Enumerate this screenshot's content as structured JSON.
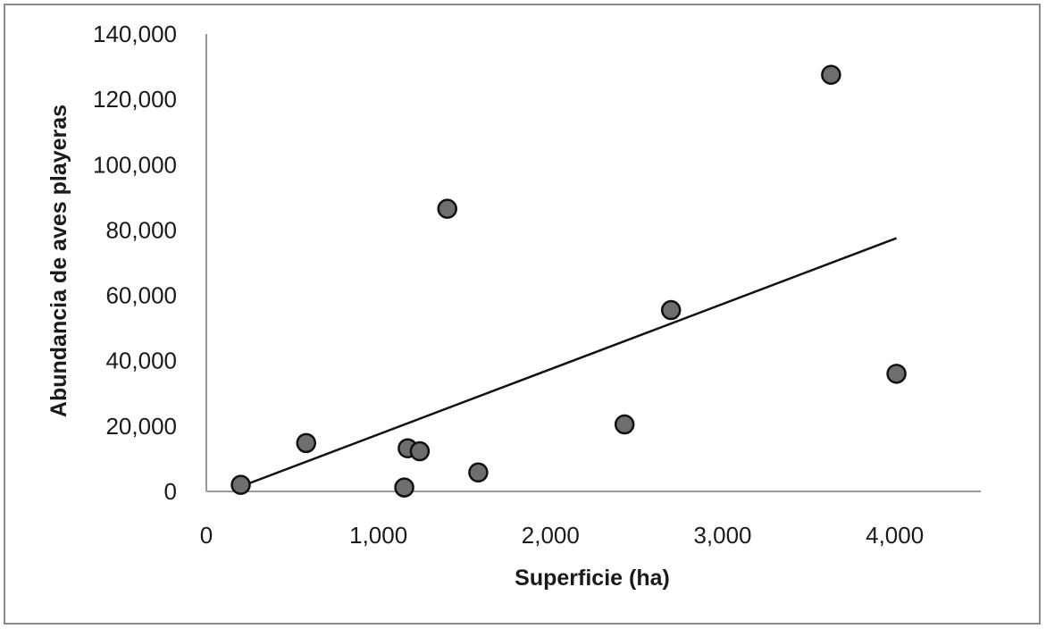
{
  "chart_data": {
    "type": "scatter",
    "title": "",
    "xlabel": "Superficie (ha)",
    "ylabel": "Abundancia de aves playeras",
    "xlim": [
      0,
      4500
    ],
    "ylim": [
      0,
      140000
    ],
    "x_ticks": [
      0,
      1000,
      2000,
      3000,
      4000
    ],
    "x_tick_labels": [
      "0",
      "1,000",
      "2,000",
      "3,000",
      "4,000"
    ],
    "y_ticks": [
      0,
      20000,
      40000,
      60000,
      80000,
      100000,
      120000,
      140000
    ],
    "y_tick_labels": [
      "0",
      "20,000",
      "40,000",
      "60,000",
      "80,000",
      "100,000",
      "120,000",
      "140,000"
    ],
    "grid": false,
    "legend": "none",
    "marker_color": "#6e6e6e",
    "series": [
      {
        "x": [
          200,
          580,
          1150,
          1170,
          1240,
          1400,
          1580,
          2430,
          2700,
          3630,
          4010
        ],
        "y": [
          2000,
          14800,
          1200,
          13200,
          12300,
          86500,
          5800,
          20500,
          55500,
          127500,
          36000
        ]
      }
    ],
    "trendline": {
      "type": "linear",
      "x": [
        200,
        4010
      ],
      "y": [
        1500,
        77500
      ]
    }
  }
}
